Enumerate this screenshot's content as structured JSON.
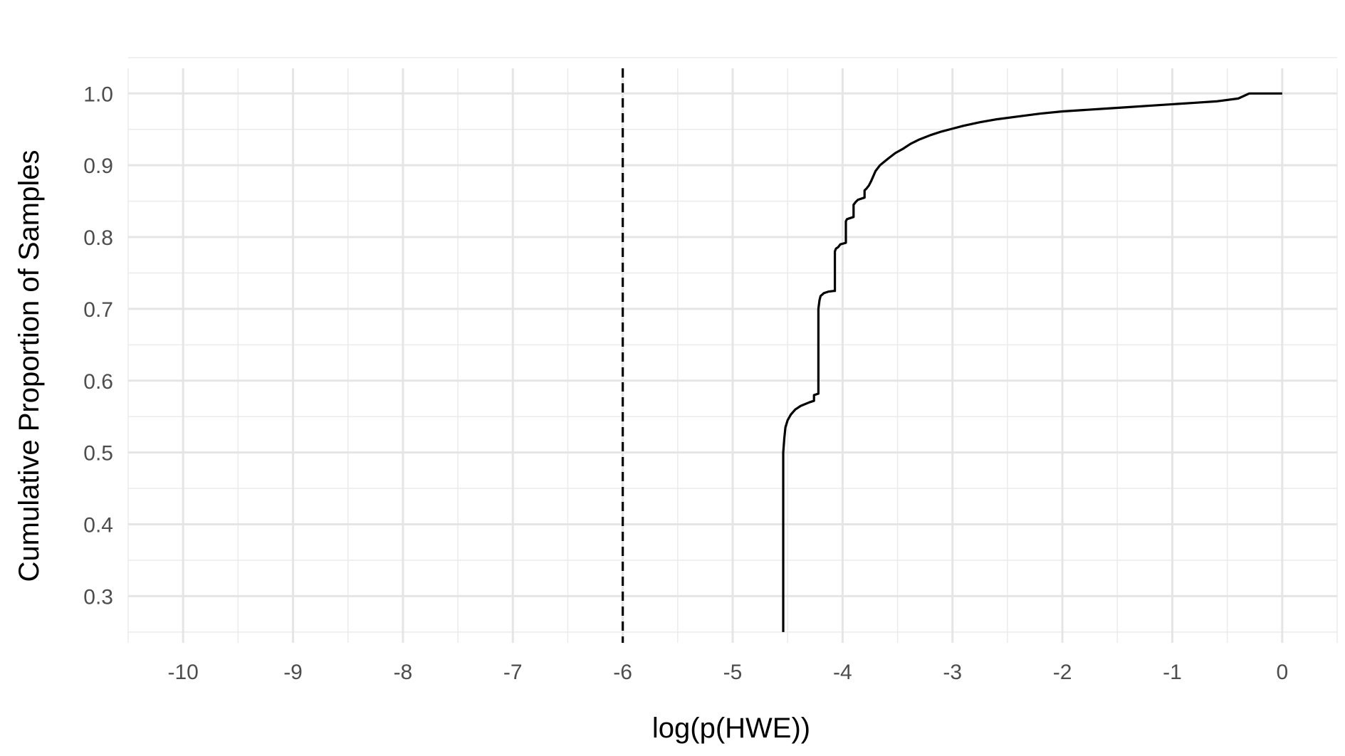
{
  "chart_data": {
    "type": "line",
    "xlabel": "log(p(HWE))",
    "ylabel": "Cumulative Proportion of Samples",
    "xlim": [
      -10.5,
      0.5
    ],
    "ylim": [
      0.235,
      1.035
    ],
    "x_ticks": [
      -10,
      -9,
      -8,
      -7,
      -6,
      -5,
      -4,
      -3,
      -2,
      -1,
      0
    ],
    "x_tick_labels": [
      "-10",
      "-9",
      "-8",
      "-7",
      "-6",
      "-5",
      "-4",
      "-3",
      "-2",
      "-1",
      "0"
    ],
    "y_ticks": [
      0.3,
      0.4,
      0.5,
      0.6,
      0.7,
      0.8,
      0.9,
      1.0
    ],
    "y_tick_labels": [
      "0.3",
      "0.4",
      "0.5",
      "0.6",
      "0.7",
      "0.8",
      "0.9",
      "1.0"
    ],
    "grid": true,
    "reference_line": {
      "x": -6,
      "style": "dashed",
      "color": "#000000"
    },
    "series": [
      {
        "color": "#000000",
        "x": [
          -4.54,
          -4.54,
          -4.53,
          -4.52,
          -4.5,
          -4.47,
          -4.43,
          -4.38,
          -4.3,
          -4.26,
          -4.26,
          -4.22,
          -4.22,
          -4.21,
          -4.2,
          -4.17,
          -4.13,
          -4.08,
          -4.07,
          -4.07,
          -4.06,
          -4.04,
          -4.02,
          -3.97,
          -3.97,
          -3.96,
          -3.94,
          -3.9,
          -3.9,
          -3.88,
          -3.86,
          -3.8,
          -3.8,
          -3.78,
          -3.76,
          -3.74,
          -3.72,
          -3.7,
          -3.66,
          -3.62,
          -3.58,
          -3.52,
          -3.45,
          -3.38,
          -3.3,
          -3.2,
          -3.1,
          -3.0,
          -2.9,
          -2.75,
          -2.6,
          -2.4,
          -2.2,
          -2.0,
          -1.8,
          -1.6,
          -1.4,
          -1.2,
          -1.0,
          -0.8,
          -0.6,
          -0.4,
          -0.3,
          -0.2,
          -0.1,
          0.0
        ],
        "y": [
          0.25,
          0.5,
          0.52,
          0.535,
          0.545,
          0.553,
          0.56,
          0.565,
          0.57,
          0.572,
          0.58,
          0.582,
          0.7,
          0.712,
          0.718,
          0.722,
          0.724,
          0.725,
          0.725,
          0.78,
          0.784,
          0.786,
          0.79,
          0.792,
          0.822,
          0.825,
          0.826,
          0.828,
          0.845,
          0.849,
          0.852,
          0.855,
          0.865,
          0.868,
          0.872,
          0.878,
          0.885,
          0.892,
          0.9,
          0.905,
          0.91,
          0.917,
          0.923,
          0.93,
          0.936,
          0.942,
          0.947,
          0.951,
          0.955,
          0.96,
          0.964,
          0.968,
          0.972,
          0.975,
          0.977,
          0.979,
          0.981,
          0.983,
          0.985,
          0.987,
          0.989,
          0.993,
          1.0,
          1.0,
          1.0,
          1.0
        ]
      }
    ]
  }
}
